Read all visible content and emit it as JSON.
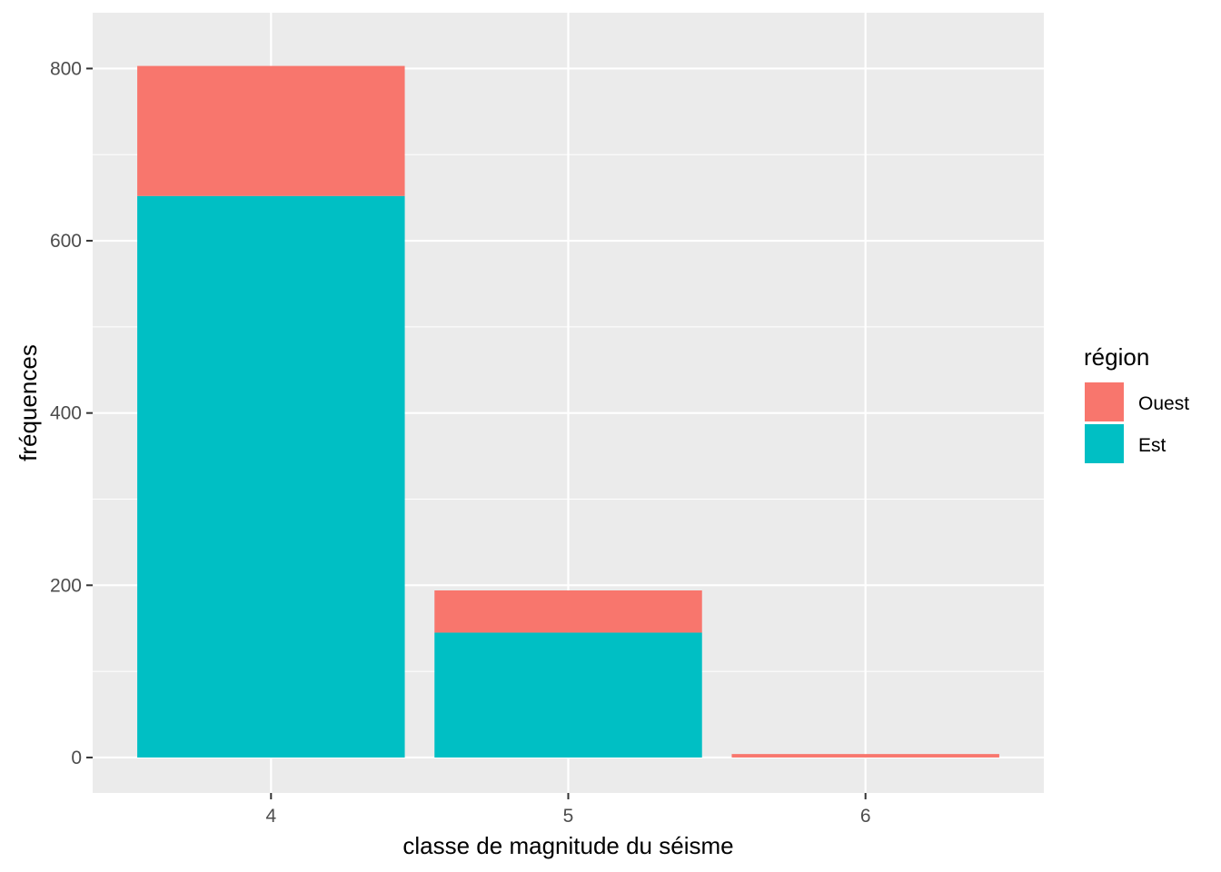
{
  "chart_data": {
    "type": "bar",
    "stacked": true,
    "categories": [
      "4",
      "5",
      "6"
    ],
    "series": [
      {
        "name": "Est",
        "values": [
          652,
          145,
          0
        ],
        "color": "#00BFC4"
      },
      {
        "name": "Ouest",
        "values": [
          151,
          49,
          4
        ],
        "color": "#F8766D"
      }
    ],
    "xlabel": "classe de magnitude du séisme",
    "ylabel": "fréquences",
    "ylim": [
      -41.2,
      864.8
    ],
    "yticks": [
      0,
      200,
      400,
      600,
      800
    ],
    "yticks_minor": [
      100,
      300,
      500,
      700
    ],
    "legend": {
      "title": "région",
      "position": "right",
      "entries": [
        {
          "label": "Ouest",
          "color": "#F8766D"
        },
        {
          "label": "Est",
          "color": "#00BFC4"
        }
      ]
    },
    "grid": true,
    "panel_background": "#EBEBEB"
  }
}
